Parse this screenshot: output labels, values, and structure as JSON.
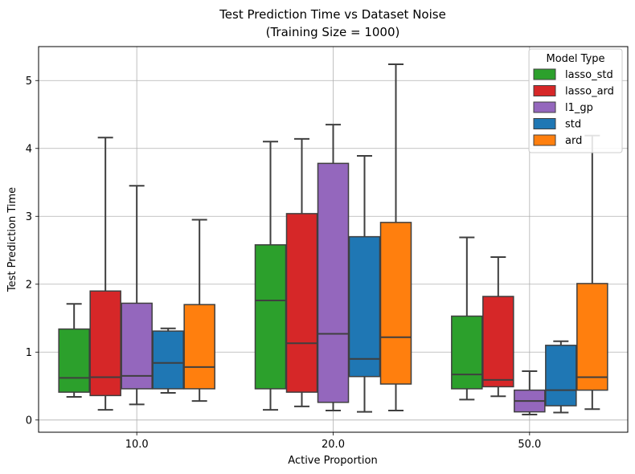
{
  "chart_data": {
    "type": "box",
    "title_line1": "Test Prediction Time vs Dataset Noise",
    "title_line2": "(Training Size = 1000)",
    "xlabel": "Active Proportion",
    "ylabel": "Test Prediction Time",
    "ylim": [
      -0.18,
      5.5
    ],
    "yticks": [
      0,
      1,
      2,
      3,
      4,
      5
    ],
    "categories": [
      "10.0",
      "20.0",
      "50.0"
    ],
    "grid": true,
    "legend": {
      "title": "Model Type",
      "position": "top-right"
    },
    "series": [
      {
        "name": "lasso_std",
        "color": "#2ca02c",
        "boxes": [
          {
            "whislo": 0.34,
            "q1": 0.41,
            "med": 0.62,
            "q3": 1.34,
            "whishi": 1.71
          },
          {
            "whislo": 0.15,
            "q1": 0.46,
            "med": 1.76,
            "q3": 2.58,
            "whishi": 4.1
          },
          {
            "whislo": 0.3,
            "q1": 0.46,
            "med": 0.67,
            "q3": 1.53,
            "whishi": 2.69
          }
        ]
      },
      {
        "name": "lasso_ard",
        "color": "#d62728",
        "boxes": [
          {
            "whislo": 0.15,
            "q1": 0.36,
            "med": 0.63,
            "q3": 1.9,
            "whishi": 4.16
          },
          {
            "whislo": 0.2,
            "q1": 0.41,
            "med": 1.13,
            "q3": 3.04,
            "whishi": 4.14
          },
          {
            "whislo": 0.35,
            "q1": 0.49,
            "med": 0.59,
            "q3": 1.82,
            "whishi": 2.4
          }
        ]
      },
      {
        "name": "l1_gp",
        "color": "#9467bd",
        "boxes": [
          {
            "whislo": 0.23,
            "q1": 0.46,
            "med": 0.65,
            "q3": 1.72,
            "whishi": 3.45
          },
          {
            "whislo": 0.14,
            "q1": 0.26,
            "med": 1.27,
            "q3": 3.78,
            "whishi": 4.35
          },
          {
            "whislo": 0.08,
            "q1": 0.12,
            "med": 0.28,
            "q3": 0.44,
            "whishi": 0.72
          }
        ]
      },
      {
        "name": "std",
        "color": "#1f77b4",
        "boxes": [
          {
            "whislo": 0.4,
            "q1": 0.46,
            "med": 0.84,
            "q3": 1.31,
            "whishi": 1.35
          },
          {
            "whislo": 0.12,
            "q1": 0.64,
            "med": 0.9,
            "q3": 2.7,
            "whishi": 3.89
          },
          {
            "whislo": 0.11,
            "q1": 0.21,
            "med": 0.44,
            "q3": 1.1,
            "whishi": 1.16
          }
        ]
      },
      {
        "name": "ard",
        "color": "#ff7f0e",
        "boxes": [
          {
            "whislo": 0.28,
            "q1": 0.46,
            "med": 0.78,
            "q3": 1.7,
            "whishi": 2.95
          },
          {
            "whislo": 0.14,
            "q1": 0.53,
            "med": 1.22,
            "q3": 2.91,
            "whishi": 5.24
          },
          {
            "whislo": 0.16,
            "q1": 0.44,
            "med": 0.63,
            "q3": 2.01,
            "whishi": 4.19
          }
        ]
      }
    ]
  }
}
